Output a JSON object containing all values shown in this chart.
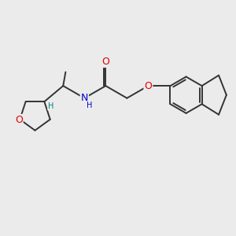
{
  "bg_color": "#ebebeb",
  "bond_color": "#333333",
  "bond_width": 1.4,
  "atom_colors": {
    "O": "#e00000",
    "N": "#0000cc",
    "H_thf": "#008080",
    "C": "#333333"
  },
  "font_size": 8.5,
  "fig_size": [
    3.0,
    3.0
  ],
  "dpi": 100,
  "xlim": [
    0,
    10
  ],
  "ylim": [
    0,
    10
  ]
}
